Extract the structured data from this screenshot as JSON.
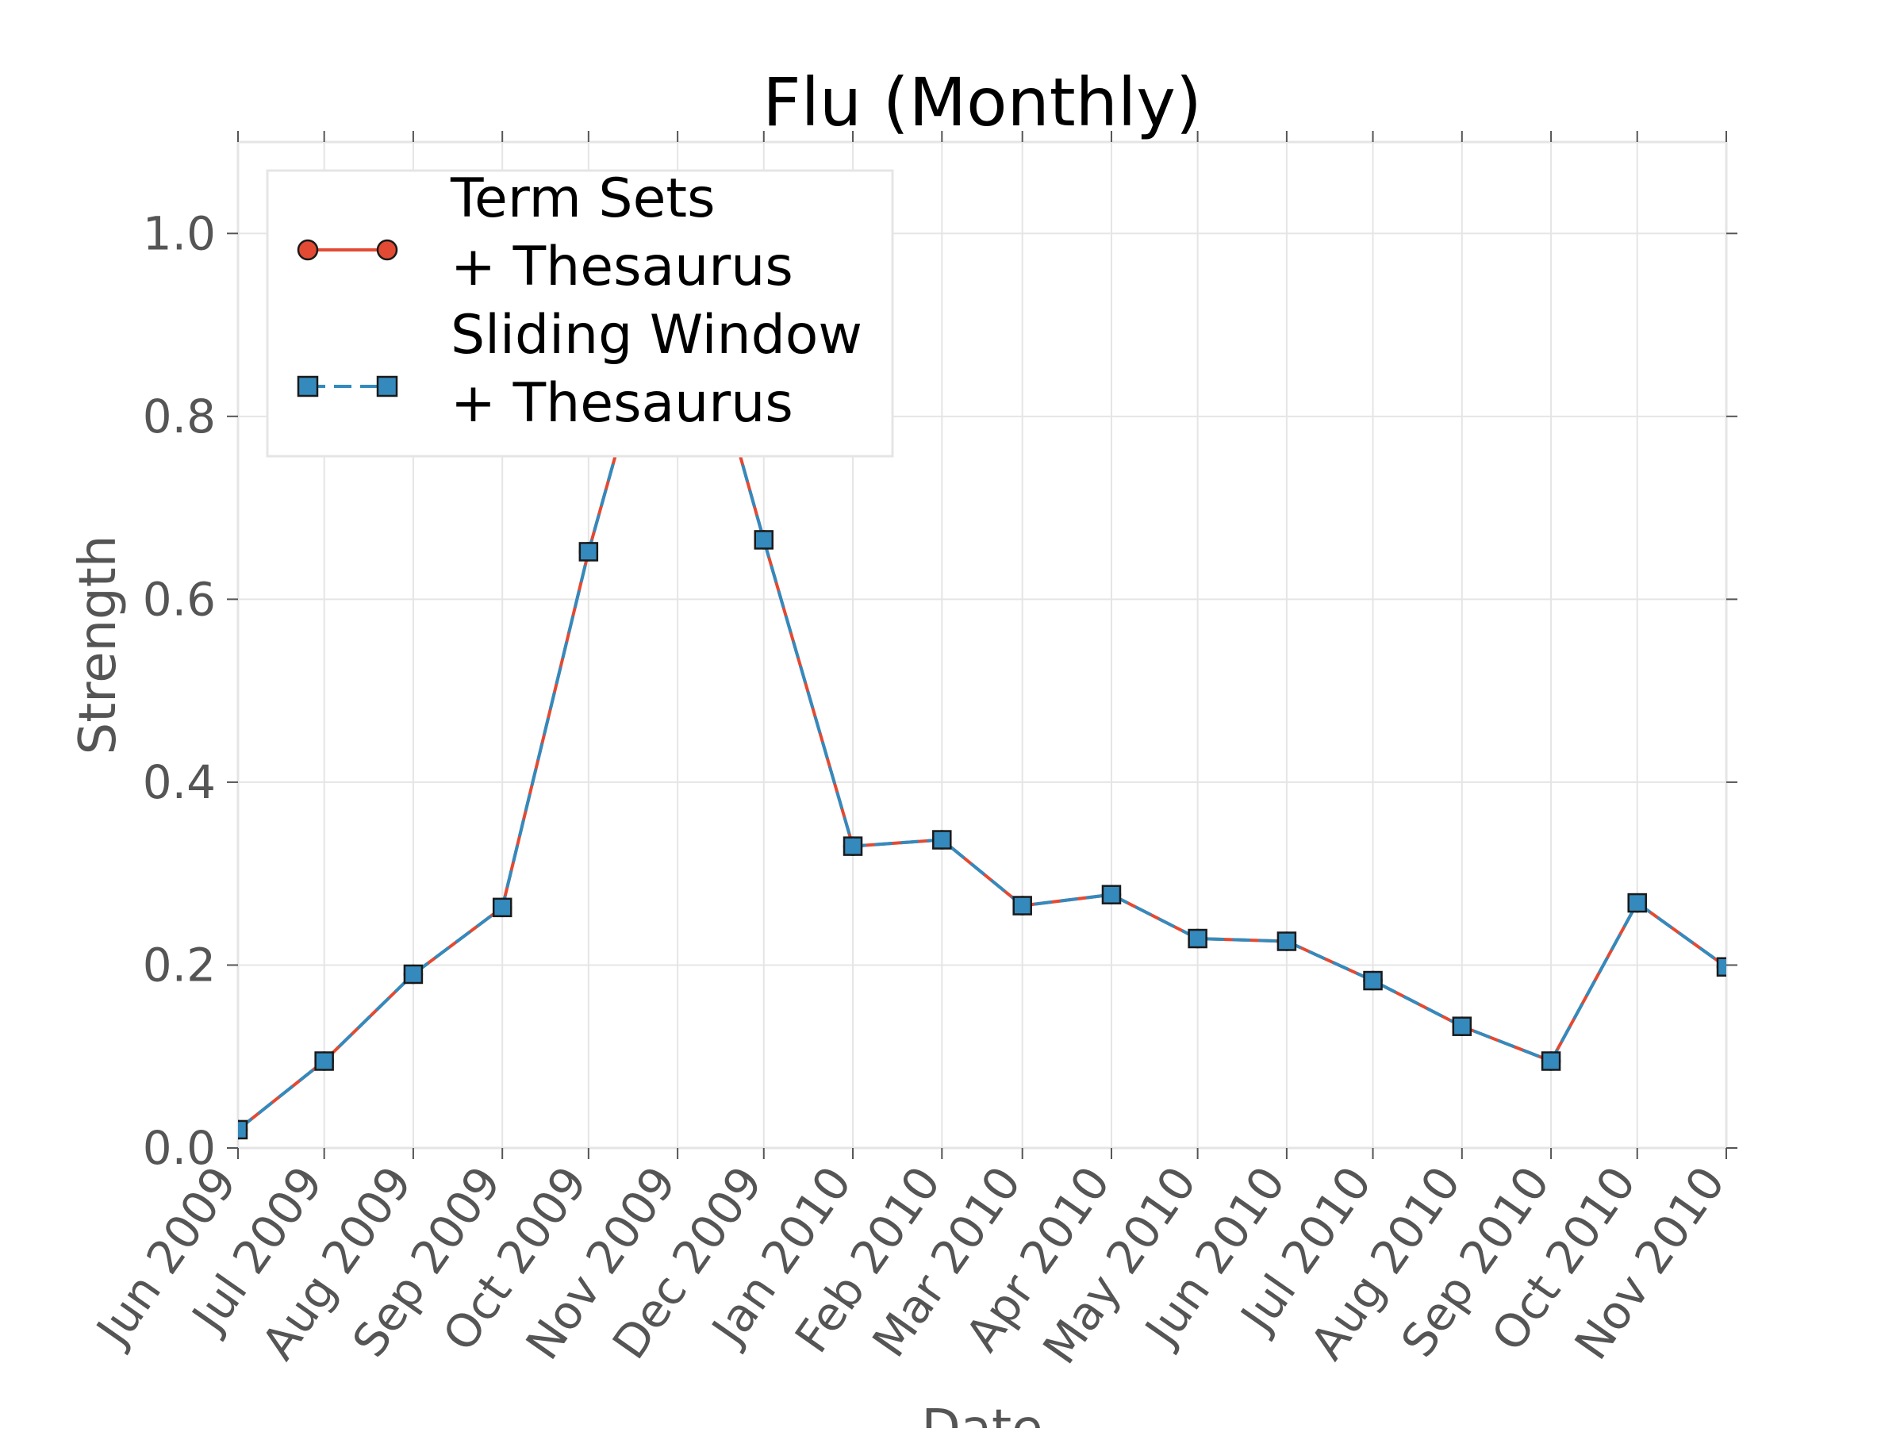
{
  "chart_data": {
    "type": "line",
    "title": "Flu (Monthly)",
    "xlabel": "Date",
    "ylabel": "Strength",
    "x": [
      "Jun 2009",
      "Jul 2009",
      "Aug 2009",
      "Sep 2009",
      "Oct 2009",
      "Nov 2009",
      "Dec 2009",
      "Jan 2010",
      "Feb 2010",
      "Mar 2010",
      "Apr 2010",
      "May 2010",
      "Jun 2010",
      "Jul 2010",
      "Aug 2010",
      "Sep 2010",
      "Oct 2010",
      "Nov 2010"
    ],
    "x_dates": [
      "2009-06-01",
      "2009-07-01",
      "2009-08-01",
      "2009-09-01",
      "2009-10-01",
      "2009-11-01",
      "2009-12-01",
      "2010-01-01",
      "2010-02-01",
      "2010-03-01",
      "2010-04-01",
      "2010-05-01",
      "2010-06-01",
      "2010-07-01",
      "2010-08-01",
      "2010-09-01",
      "2010-10-01",
      "2010-11-01"
    ],
    "ylim": [
      0,
      1.1
    ],
    "yticks": [
      0.0,
      0.2,
      0.4,
      0.6,
      0.8,
      1.0
    ],
    "ytick_labels": [
      "0.0",
      "0.2",
      "0.4",
      "0.6",
      "0.8",
      "1.0"
    ],
    "grid": true,
    "legend_position": "top-left",
    "series": [
      {
        "name": "Term Sets\n+ Thesaurus",
        "legend_lines": [
          "Term Sets",
          "+ Thesaurus"
        ],
        "color": "#e24a33",
        "marker": "circle",
        "line_style": "solid",
        "dates": [
          "2009-06-01",
          "2009-07-01",
          "2009-08-01",
          "2009-09-01",
          "2009-10-01",
          "2009-11-01",
          "2009-12-01",
          "2010-01-01",
          "2010-02-01",
          "2010-03-01",
          "2010-04-01",
          "2010-05-01",
          "2010-06-01",
          "2010-07-01",
          "2010-08-01",
          "2010-09-01",
          "2010-10-01",
          "2010-11-01"
        ],
        "values": [
          0.02,
          0.095,
          0.19,
          0.263,
          0.652,
          1.0,
          0.665,
          0.33,
          0.337,
          0.265,
          0.277,
          0.229,
          0.226,
          0.183,
          0.133,
          0.095,
          0.268,
          0.198
        ]
      },
      {
        "name": "Sliding Window\n+ Thesaurus",
        "legend_lines": [
          "Sliding Window",
          "+ Thesaurus"
        ],
        "color": "#348abd",
        "marker": "square",
        "line_style": "dashed",
        "dates": [
          "2009-06-01",
          "2009-07-01",
          "2009-08-01",
          "2009-09-01",
          "2009-10-01",
          "2009-11-01",
          "2009-12-01",
          "2010-01-01",
          "2010-02-01",
          "2010-03-01",
          "2010-04-01",
          "2010-05-01",
          "2010-06-01",
          "2010-07-01",
          "2010-08-01",
          "2010-09-01",
          "2010-10-01",
          "2010-11-01"
        ],
        "values": [
          0.02,
          0.095,
          0.19,
          0.263,
          0.652,
          1.0,
          0.665,
          0.33,
          0.337,
          0.265,
          0.277,
          0.229,
          0.226,
          0.183,
          0.133,
          0.095,
          0.268,
          0.198
        ]
      }
    ]
  }
}
